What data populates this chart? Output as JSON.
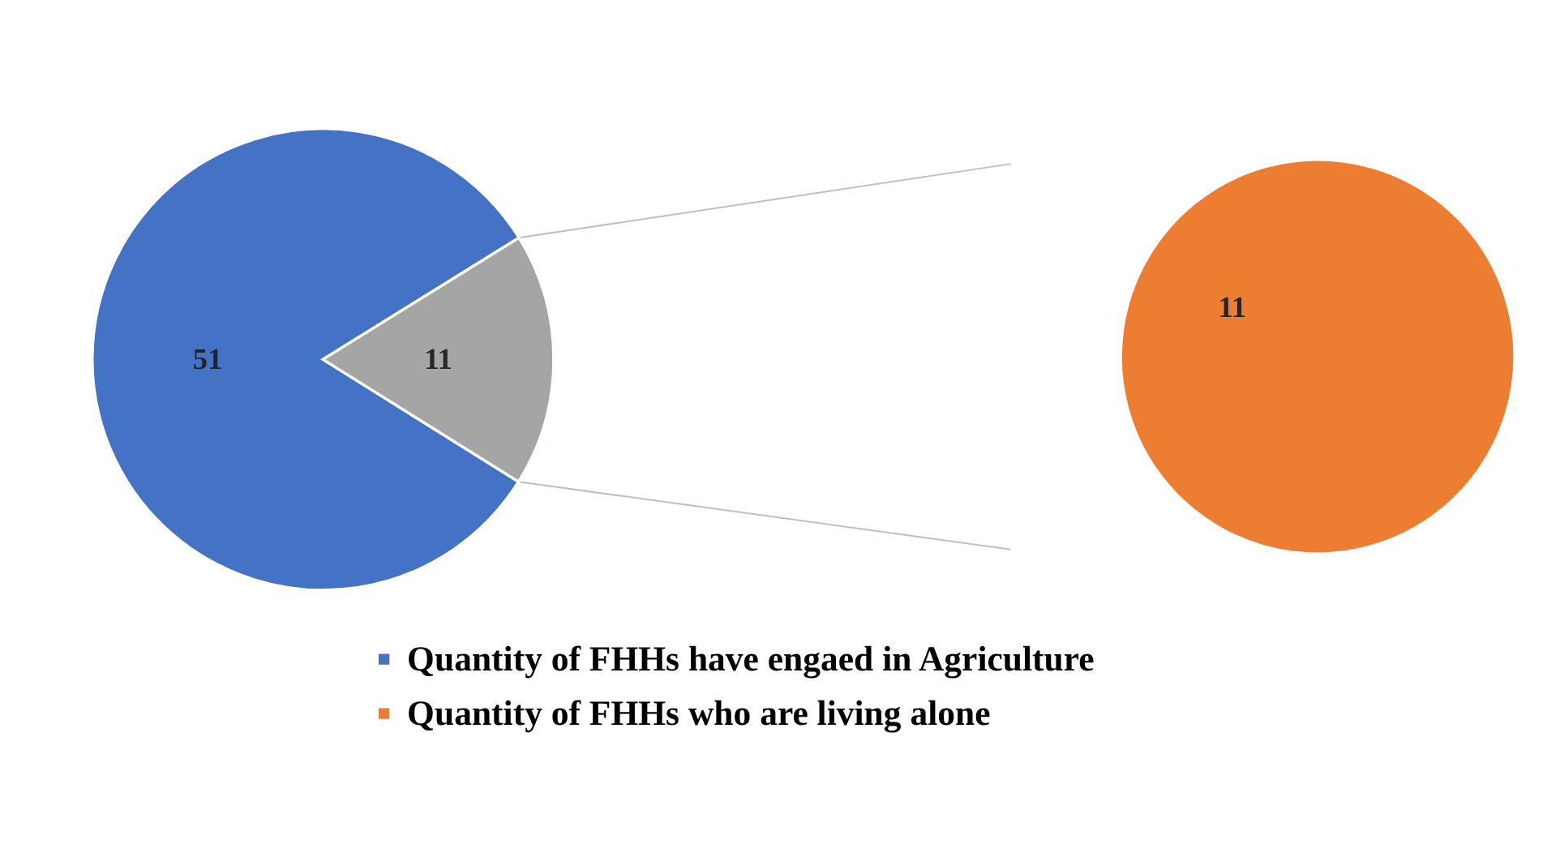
{
  "chart_data": [
    {
      "type": "pie",
      "categories": [
        "Quantity of FHHs have engaed in Agriculture",
        null
      ],
      "values": [
        51,
        11
      ],
      "colors": [
        "#4472c4",
        "#a5a5a5"
      ],
      "data_labels": true,
      "legend": "bottom"
    },
    {
      "type": "pie",
      "categories": [
        "Quantity of FHHs who are living alone"
      ],
      "values": [
        11
      ],
      "colors": [
        "#ed7d31"
      ],
      "data_labels": true,
      "legend": "bottom"
    }
  ]
}
